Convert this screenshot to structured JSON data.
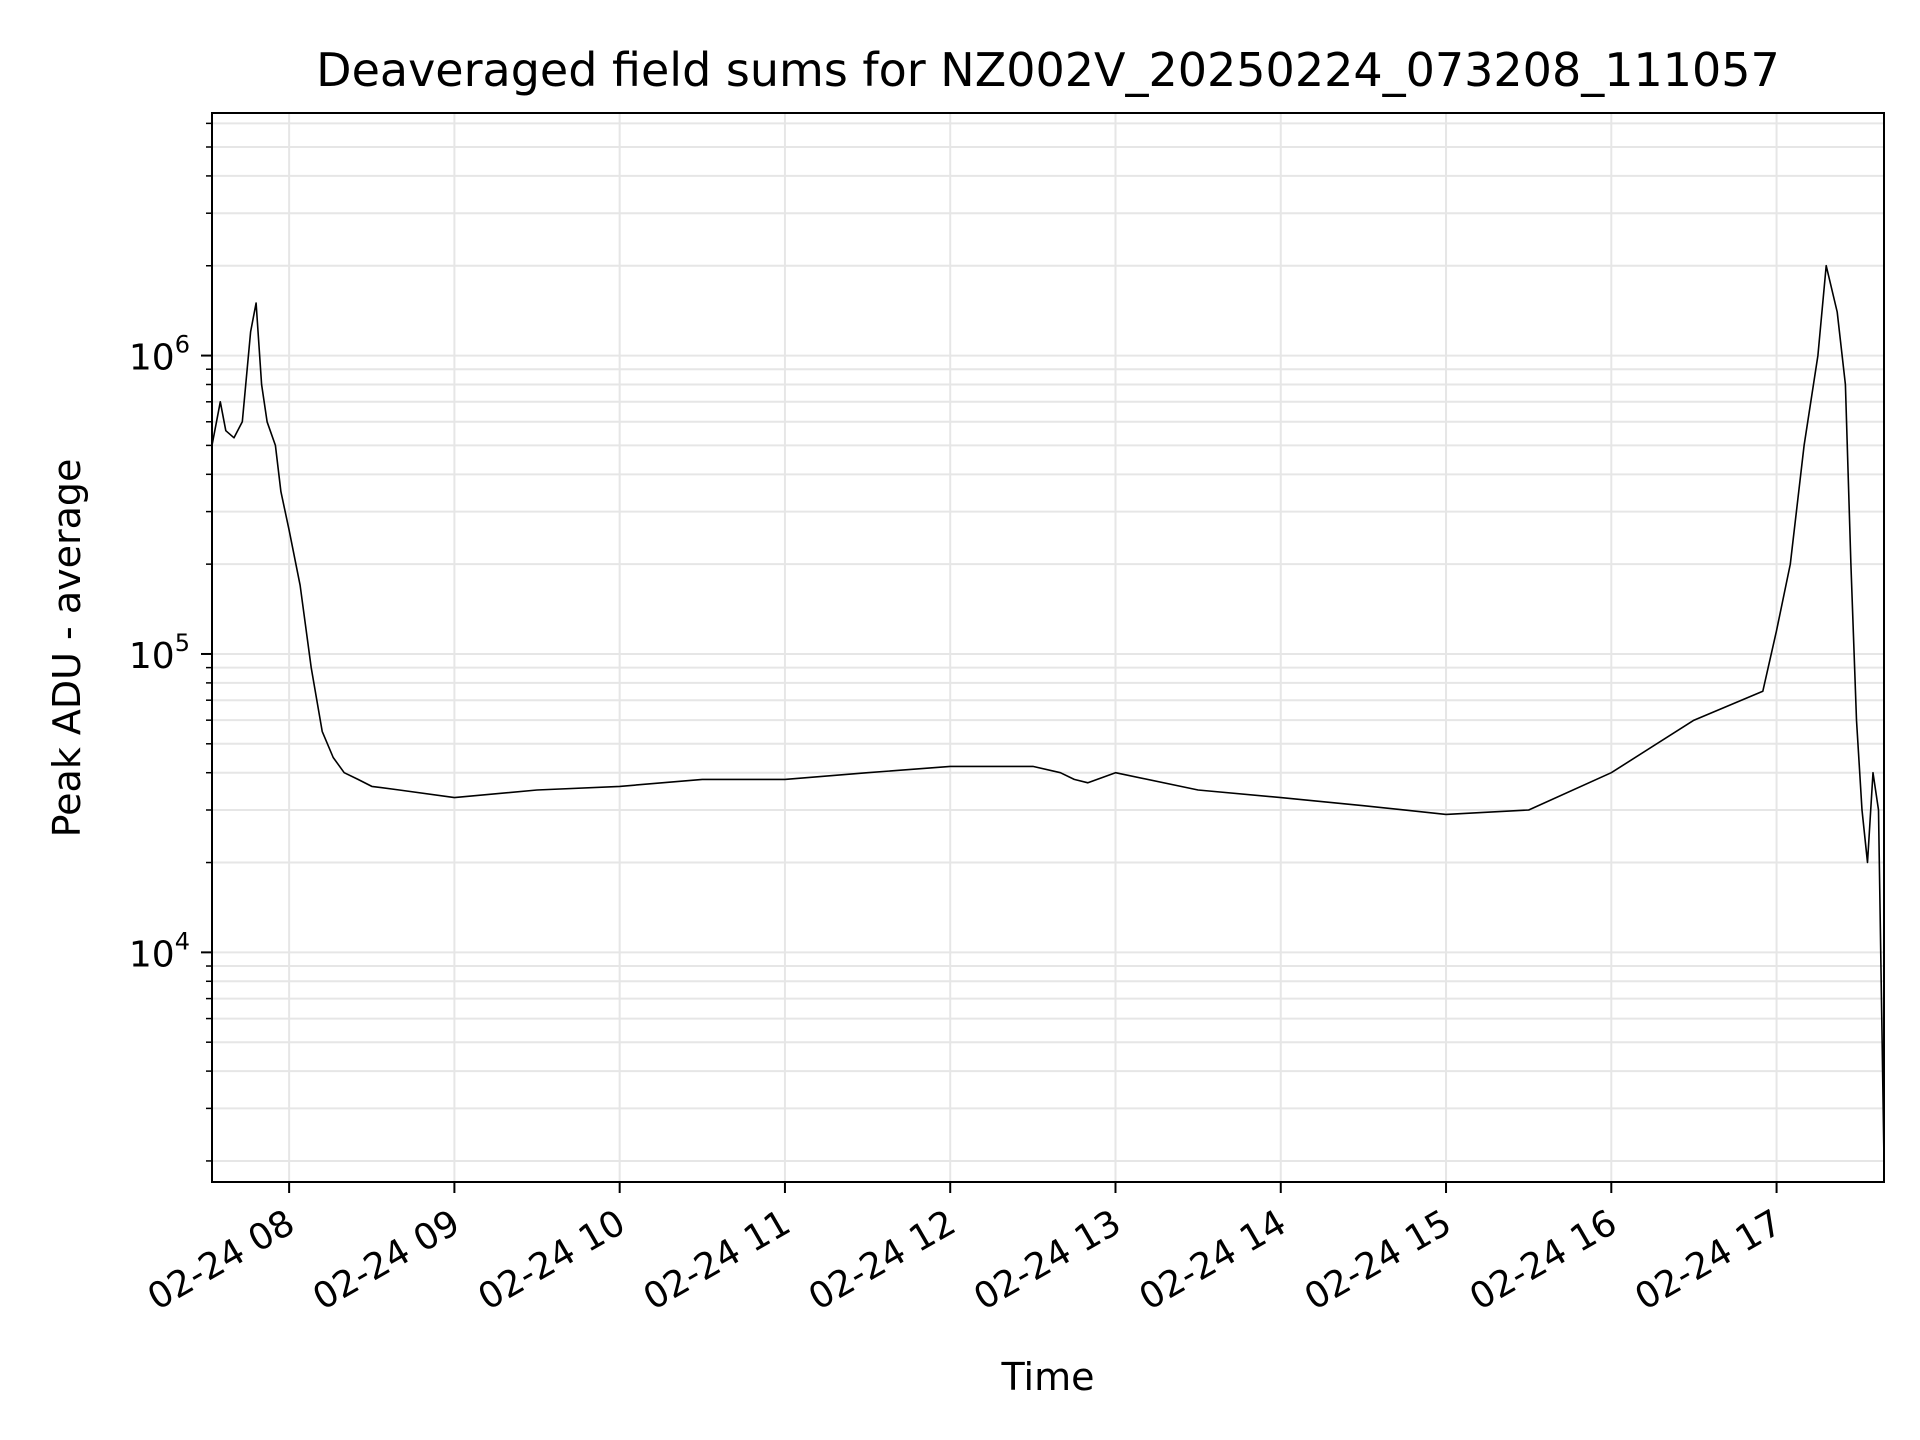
{
  "chart_data": {
    "type": "line",
    "title": "Deaveraged field sums for NZ002V_20250224_073208_111057",
    "xlabel": "Time",
    "ylabel": "Peak ADU - average",
    "yscale": "log",
    "ylim": [
      1700,
      6500000
    ],
    "xlim": [
      "2025-02-24 07:32",
      "2025-02-24 17:39"
    ],
    "grid": true,
    "line_color": "#000000",
    "grid_color": "#e6e6e6",
    "x_ticks": [
      "2025-02-24 08:00",
      "2025-02-24 09:00",
      "2025-02-24 10:00",
      "2025-02-24 11:00",
      "2025-02-24 12:00",
      "2025-02-24 13:00",
      "2025-02-24 14:00",
      "2025-02-24 15:00",
      "2025-02-24 16:00",
      "2025-02-24 17:00"
    ],
    "x_tick_labels": [
      "02-24 08",
      "02-24 09",
      "02-24 10",
      "02-24 11",
      "02-24 12",
      "02-24 13",
      "02-24 14",
      "02-24 15",
      "02-24 16",
      "02-24 17"
    ],
    "y_ticks": [
      10000,
      100000,
      1000000
    ],
    "y_tick_labels": [
      {
        "base": "10",
        "exp": "4"
      },
      {
        "base": "10",
        "exp": "5"
      },
      {
        "base": "10",
        "exp": "6"
      }
    ],
    "series": [
      {
        "x": [
          "2025-02-24 07:32",
          "2025-02-24 07:35",
          "2025-02-24 07:37",
          "2025-02-24 07:40",
          "2025-02-24 07:43",
          "2025-02-24 07:46",
          "2025-02-24 07:48",
          "2025-02-24 07:50",
          "2025-02-24 07:52",
          "2025-02-24 07:55",
          "2025-02-24 07:57",
          "2025-02-24 08:00",
          "2025-02-24 08:04",
          "2025-02-24 08:08",
          "2025-02-24 08:12",
          "2025-02-24 08:16",
          "2025-02-24 08:20",
          "2025-02-24 08:25",
          "2025-02-24 08:30",
          "2025-02-24 08:40",
          "2025-02-24 09:00",
          "2025-02-24 09:30",
          "2025-02-24 10:00",
          "2025-02-24 10:30",
          "2025-02-24 11:00",
          "2025-02-24 11:30",
          "2025-02-24 12:00",
          "2025-02-24 12:30",
          "2025-02-24 12:40",
          "2025-02-24 12:45",
          "2025-02-24 12:50",
          "2025-02-24 13:00",
          "2025-02-24 13:30",
          "2025-02-24 14:00",
          "2025-02-24 14:30",
          "2025-02-24 15:00",
          "2025-02-24 15:30",
          "2025-02-24 16:00",
          "2025-02-24 16:30",
          "2025-02-24 16:55",
          "2025-02-24 17:00",
          "2025-02-24 17:05",
          "2025-02-24 17:10",
          "2025-02-24 17:15",
          "2025-02-24 17:18",
          "2025-02-24 17:22",
          "2025-02-24 17:25",
          "2025-02-24 17:27",
          "2025-02-24 17:29",
          "2025-02-24 17:31",
          "2025-02-24 17:33",
          "2025-02-24 17:35",
          "2025-02-24 17:37",
          "2025-02-24 17:39"
        ],
        "y": [
          500000,
          700000,
          560000,
          530000,
          600000,
          1200000,
          1500000,
          800000,
          600000,
          500000,
          350000,
          260000,
          170000,
          90000,
          55000,
          45000,
          40000,
          38000,
          36000,
          35000,
          33000,
          35000,
          36000,
          38000,
          38000,
          40000,
          42000,
          42000,
          40000,
          38000,
          37000,
          40000,
          35000,
          33000,
          31000,
          29000,
          30000,
          40000,
          60000,
          75000,
          120000,
          200000,
          500000,
          1000000,
          2000000,
          1400000,
          800000,
          200000,
          60000,
          30000,
          20000,
          40000,
          30000,
          2000
        ]
      }
    ]
  }
}
